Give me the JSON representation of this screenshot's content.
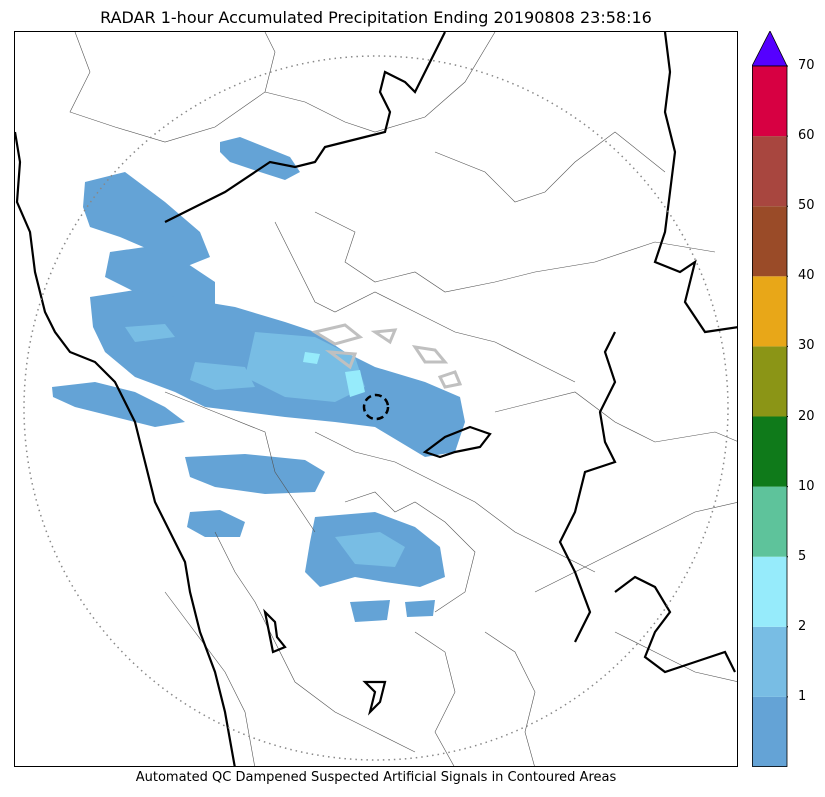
{
  "title": "RADAR 1-hour Accumulated Precipitation Ending 20190808 23:58:16",
  "footer_note": "Automated QC Dampened Suspected Artificial Signals in Contoured Areas",
  "colorbar": {
    "levels": [
      "",
      "1",
      "2",
      "5",
      "10",
      "20",
      "30",
      "40",
      "50",
      "60",
      "70"
    ],
    "colors": [
      "#64a3d6",
      "#78bde4",
      "#96ebfb",
      "#5ec39b",
      "#0f7a1a",
      "#8b9516",
      "#e8a718",
      "#9a4b28",
      "#a8463f",
      "#d70042"
    ],
    "over_color": "#5500ff",
    "extend": "max"
  },
  "map": {
    "range_ring": "dotted",
    "precip_fill": "#64a3d6",
    "precip_light": "#78bde4",
    "precip_lighter": "#96ebfb",
    "qc_contour_color": "#c0c0c0"
  }
}
